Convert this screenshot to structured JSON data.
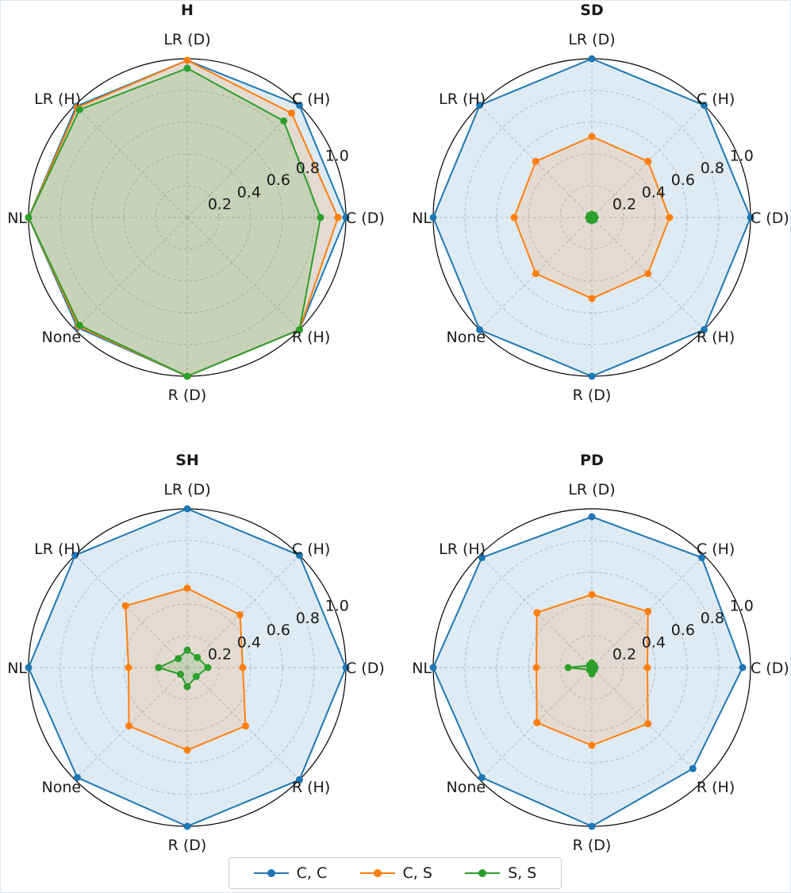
{
  "chart_data": [
    {
      "type": "radar",
      "title": "H",
      "categories": [
        "C (D)",
        "C (H)",
        "LR (D)",
        "LR (H)",
        "NL",
        "None",
        "R (D)",
        "R (H)"
      ],
      "rticks": [
        "0.2",
        "0.4",
        "0.6",
        "0.8",
        "1.0"
      ],
      "rlim": [
        0,
        1.0
      ],
      "grid": true,
      "series": [
        {
          "name": "C, C",
          "color": "#1f77b4",
          "values": [
            1.0,
            1.0,
            0.99,
            0.99,
            1.0,
            0.98,
            1.0,
            1.0
          ]
        },
        {
          "name": "C, S",
          "color": "#ff7f0e",
          "values": [
            0.95,
            0.93,
            0.99,
            0.98,
            1.0,
            0.97,
            1.0,
            1.0
          ]
        },
        {
          "name": "S, S",
          "color": "#2ca02c",
          "values": [
            0.84,
            0.86,
            0.94,
            0.96,
            1.0,
            0.96,
            1.0,
            1.0
          ]
        }
      ]
    },
    {
      "type": "radar",
      "title": "SD",
      "categories": [
        "C (D)",
        "C (H)",
        "LR (D)",
        "LR (H)",
        "NL",
        "None",
        "R (D)",
        "R (H)"
      ],
      "rticks": [
        "0.2",
        "0.4",
        "0.6",
        "0.8",
        "1.0"
      ],
      "rlim": [
        0,
        1.0
      ],
      "grid": true,
      "series": [
        {
          "name": "C, C",
          "color": "#1f77b4",
          "values": [
            1.0,
            1.0,
            1.0,
            1.0,
            1.0,
            1.0,
            1.0,
            1.0
          ]
        },
        {
          "name": "C, S",
          "color": "#ff7f0e",
          "values": [
            0.49,
            0.5,
            0.51,
            0.5,
            0.49,
            0.5,
            0.51,
            0.5
          ]
        },
        {
          "name": "S, S",
          "color": "#2ca02c",
          "values": [
            0.02,
            0.02,
            0.02,
            0.02,
            0.02,
            0.02,
            0.02,
            0.02
          ]
        }
      ]
    },
    {
      "type": "radar",
      "title": "SH",
      "categories": [
        "C (D)",
        "C (H)",
        "LR (D)",
        "LR (H)",
        "NL",
        "None",
        "R (D)",
        "R (H)"
      ],
      "rticks": [
        "0.2",
        "0.4",
        "0.6",
        "0.8",
        "1.0"
      ],
      "rlim": [
        0,
        1.0
      ],
      "grid": true,
      "series": [
        {
          "name": "C, C",
          "color": "#1f77b4",
          "values": [
            1.0,
            1.0,
            1.0,
            1.0,
            1.0,
            0.98,
            1.0,
            1.0
          ]
        },
        {
          "name": "C, S",
          "color": "#ff7f0e",
          "values": [
            0.35,
            0.47,
            0.5,
            0.55,
            0.37,
            0.52,
            0.52,
            0.52
          ]
        },
        {
          "name": "S, S",
          "color": "#2ca02c",
          "values": [
            0.13,
            0.09,
            0.11,
            0.08,
            0.18,
            0.06,
            0.12,
            0.08
          ]
        }
      ]
    },
    {
      "type": "radar",
      "title": "PD",
      "categories": [
        "C (D)",
        "C (H)",
        "LR (D)",
        "LR (H)",
        "NL",
        "None",
        "R (D)",
        "R (H)"
      ],
      "rticks": [
        "0.2",
        "0.4",
        "0.6",
        "0.8",
        "1.0"
      ],
      "rlim": [
        0,
        1.0
      ],
      "grid": true,
      "series": [
        {
          "name": "C, C",
          "color": "#1f77b4",
          "values": [
            0.95,
            0.98,
            0.95,
            0.98,
            1.0,
            0.98,
            1.0,
            0.9
          ]
        },
        {
          "name": "C, S",
          "color": "#ff7f0e",
          "values": [
            0.35,
            0.5,
            0.46,
            0.49,
            0.35,
            0.49,
            0.49,
            0.5
          ]
        },
        {
          "name": "S, S",
          "color": "#2ca02c",
          "values": [
            0.02,
            0.02,
            0.03,
            0.02,
            0.15,
            0.02,
            0.04,
            0.02
          ]
        }
      ]
    }
  ],
  "legend": {
    "placement": "bottom-center",
    "items": [
      {
        "label": "C, C",
        "color": "#1f77b4"
      },
      {
        "label": "C, S",
        "color": "#ff7f0e"
      },
      {
        "label": "S, S",
        "color": "#2ca02c"
      }
    ]
  }
}
